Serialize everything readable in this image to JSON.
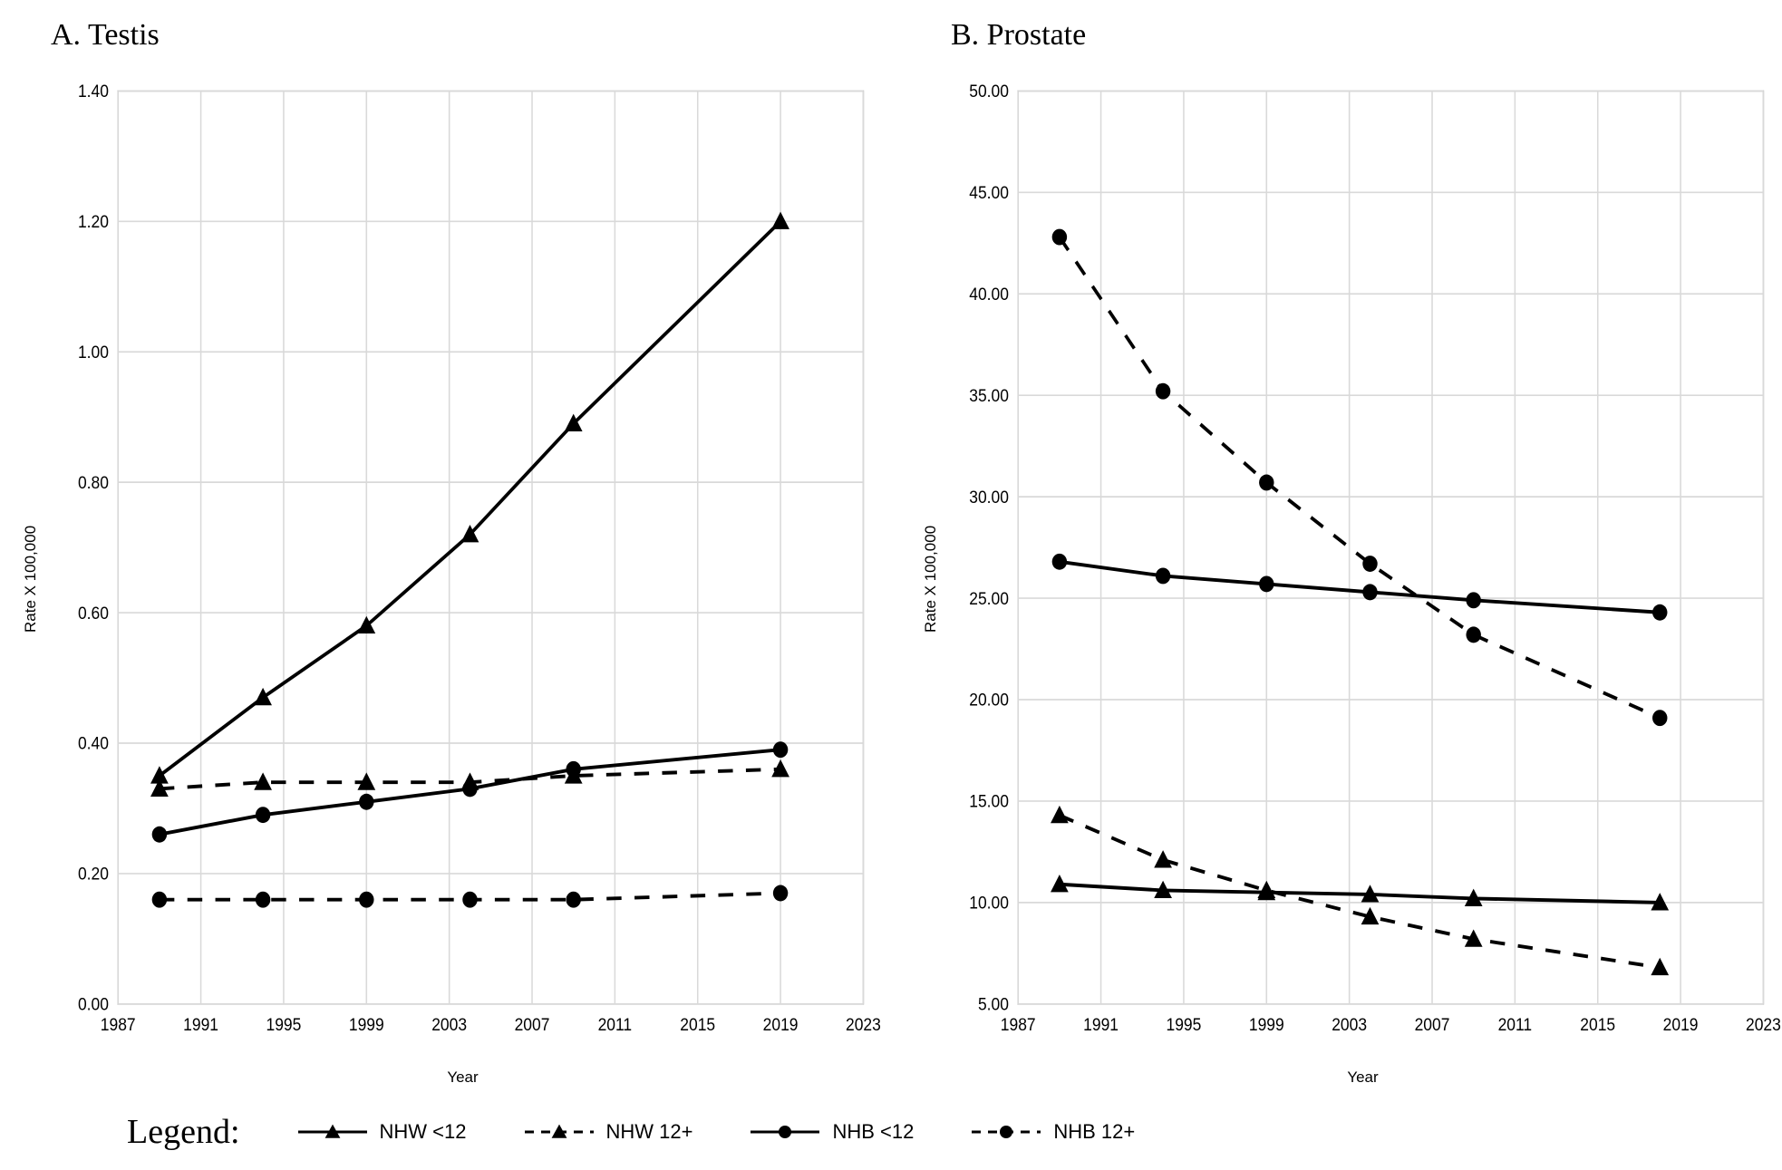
{
  "panelA": {
    "title": "A.   Testis",
    "ylabel": "Rate X 100,000",
    "xlabel": "Year",
    "type": "line",
    "xlim": [
      1987,
      2023
    ],
    "ylim": [
      0.0,
      1.4
    ],
    "xticks": [
      1987,
      1991,
      1995,
      1999,
      2003,
      2007,
      2011,
      2015,
      2019,
      2023
    ],
    "yticks": [
      0.0,
      0.2,
      0.4,
      0.6,
      0.8,
      1.0,
      1.2,
      1.4
    ],
    "ytick_format": "2dec",
    "grid_color": "#d9d9d9",
    "border_color": "#bfbfbf",
    "line_color": "#000000",
    "line_width": 3.5,
    "marker_size": 8,
    "series": {
      "nhw_lt12": {
        "marker": "triangle",
        "dash": "solid",
        "x": [
          1989,
          1994,
          1999,
          2004,
          2009,
          2019
        ],
        "y": [
          0.35,
          0.47,
          0.58,
          0.72,
          0.89,
          1.2
        ]
      },
      "nhw_12p": {
        "marker": "triangle",
        "dash": "dashed",
        "x": [
          1989,
          1994,
          1999,
          2004,
          2009,
          2019
        ],
        "y": [
          0.33,
          0.34,
          0.34,
          0.34,
          0.35,
          0.36
        ]
      },
      "nhb_lt12": {
        "marker": "circle",
        "dash": "solid",
        "x": [
          1989,
          1994,
          1999,
          2004,
          2009,
          2019
        ],
        "y": [
          0.26,
          0.29,
          0.31,
          0.33,
          0.36,
          0.39
        ]
      },
      "nhb_12p": {
        "marker": "circle",
        "dash": "dashed",
        "x": [
          1989,
          1994,
          1999,
          2004,
          2009,
          2019
        ],
        "y": [
          0.16,
          0.16,
          0.16,
          0.16,
          0.16,
          0.17
        ]
      }
    }
  },
  "panelB": {
    "title": "B.   Prostate",
    "ylabel": "Rate X 100,000",
    "xlabel": "Year",
    "type": "line",
    "xlim": [
      1987,
      2023
    ],
    "ylim": [
      5.0,
      50.0
    ],
    "xticks": [
      1987,
      1991,
      1995,
      1999,
      2003,
      2007,
      2011,
      2015,
      2019,
      2023
    ],
    "yticks": [
      5.0,
      10.0,
      15.0,
      20.0,
      25.0,
      30.0,
      35.0,
      40.0,
      45.0,
      50.0
    ],
    "ytick_format": "2dec",
    "grid_color": "#d9d9d9",
    "border_color": "#bfbfbf",
    "line_color": "#000000",
    "line_width": 3.5,
    "marker_size": 8,
    "series": {
      "nhw_lt12": {
        "marker": "triangle",
        "dash": "solid",
        "x": [
          1989,
          1994,
          1999,
          2004,
          2009,
          2018
        ],
        "y": [
          10.9,
          10.6,
          10.5,
          10.4,
          10.2,
          10.0
        ]
      },
      "nhw_12p": {
        "marker": "triangle",
        "dash": "dashed",
        "x": [
          1989,
          1994,
          1999,
          2004,
          2009,
          2018
        ],
        "y": [
          14.3,
          12.1,
          10.6,
          9.3,
          8.2,
          6.8
        ]
      },
      "nhb_lt12": {
        "marker": "circle",
        "dash": "solid",
        "x": [
          1989,
          1994,
          1999,
          2004,
          2009,
          2018
        ],
        "y": [
          26.8,
          26.1,
          25.7,
          25.3,
          24.9,
          24.3
        ]
      },
      "nhb_12p": {
        "marker": "circle",
        "dash": "dashed",
        "x": [
          1989,
          1994,
          1999,
          2004,
          2009,
          2018
        ],
        "y": [
          42.8,
          35.2,
          30.7,
          26.7,
          23.2,
          19.1
        ]
      }
    }
  },
  "legend": {
    "title": "Legend:",
    "items": {
      "nhw_lt12": {
        "label": "NHW <12",
        "marker": "triangle",
        "dash": "solid"
      },
      "nhw_12p": {
        "label": "NHW 12+",
        "marker": "triangle",
        "dash": "dashed"
      },
      "nhb_lt12": {
        "label": "NHB <12",
        "marker": "circle",
        "dash": "solid"
      },
      "nhb_12p": {
        "label": "NHB 12+",
        "marker": "circle",
        "dash": "dashed"
      }
    }
  },
  "style": {
    "background_color": "#ffffff",
    "text_color": "#000000",
    "font_family_serif": "Times New Roman",
    "font_family_sans": "Arial",
    "title_fontsize": 34,
    "axis_label_fontsize": 17,
    "tick_fontsize": 17,
    "legend_title_fontsize": 38,
    "legend_item_fontsize": 22
  }
}
